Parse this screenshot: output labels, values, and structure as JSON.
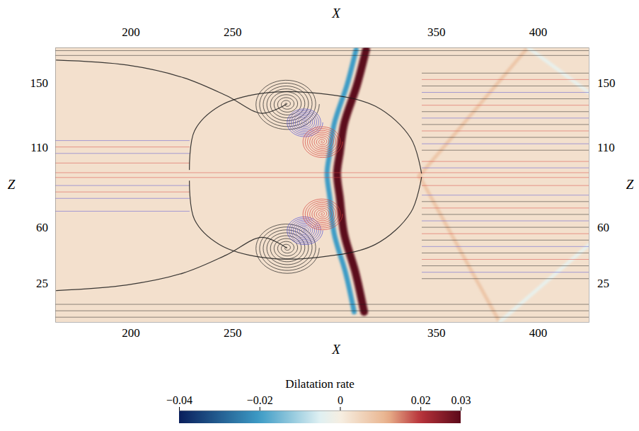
{
  "chart_data": {
    "type": "heatmap",
    "x_label": "X",
    "y_label": "Z",
    "xlim": [
      163,
      425
    ],
    "xticks": [
      200,
      250,
      350,
      400
    ],
    "ylim": [
      1,
      172
    ],
    "yticks": [
      25,
      60,
      110,
      150
    ],
    "colorbar": {
      "title": "Dilatation rate",
      "range": [
        -0.04,
        0.03
      ],
      "ticks": [
        {
          "value": -0.04,
          "label": "−0.04"
        },
        {
          "value": -0.02,
          "label": "−0.02"
        },
        0,
        0.02,
        0.03
      ]
    },
    "background": 0.003,
    "bands": [
      {
        "value": 0.03,
        "x": [
          315.7,
          311.2,
          304.9,
          302.8,
          301.4,
          302.8,
          304.9,
          310.5,
          314.7
        ],
        "z": [
          170.8,
          148.7,
          124.4,
          106.7,
          93.5,
          78.0,
          55.9,
          31.6,
          7.3
        ]
      },
      {
        "value": -0.02,
        "x": [
          310.8,
          306.3,
          300.0,
          297.9,
          296.5,
          297.9,
          300.0,
          305.6,
          309.8
        ],
        "z": [
          170.8,
          148.7,
          124.4,
          106.7,
          93.5,
          78.0,
          55.9,
          31.6,
          7.3
        ]
      },
      {
        "value": 0.008,
        "x": [
          341.8,
          395.1
        ],
        "z": [
          92,
          172
        ]
      },
      {
        "value": 0.008,
        "x": [
          341.8,
          381.2
        ],
        "z": [
          92,
          1
        ]
      },
      {
        "value": -0.003,
        "x": [
          395.1,
          425
        ],
        "z": [
          172,
          144
        ]
      },
      {
        "value": -0.003,
        "x": [
          381.2,
          425
        ],
        "z": [
          1,
          49
        ]
      }
    ],
    "streamlines": [
      {
        "color": "#1a1a1a",
        "x": [
          163,
          425
        ],
        "z": [
          167,
          170,
          4,
          8,
          12
        ]
      },
      {
        "color": "#4b4bd6",
        "x": [
          163,
          229
        ],
        "z": [
          70,
          78,
          86,
          106,
          114
        ]
      },
      {
        "color": "#d6403a",
        "x": [
          163,
          229
        ],
        "z": [
          82,
          100,
          110
        ]
      },
      {
        "color": "#d6403a",
        "x": [
          163,
          425
        ],
        "z": [
          91,
          94
        ]
      },
      {
        "color": "#1a1a1a",
        "x": [
          343,
          425
        ],
        "z": [
          28,
          36,
          44,
          52,
          60,
          68,
          76,
          108,
          116,
          124,
          132,
          140,
          148,
          156
        ]
      },
      {
        "color": "#4b4bd6",
        "x": [
          343,
          425
        ],
        "z": [
          32,
          48,
          64,
          80,
          97,
          112,
          128,
          144
        ]
      },
      {
        "color": "#d6403a",
        "x": [
          343,
          425
        ],
        "z": [
          40,
          56,
          72,
          86,
          101,
          120,
          136,
          152
        ]
      }
    ],
    "curves": [
      {
        "color": "#1a1a1a",
        "x": [
          228.9,
          231.4,
          243.6,
          264.5,
          292.3,
          320.2,
          337.6,
          342.9
        ],
        "z": [
          95.7,
          120.0,
          135.4,
          143.4,
          143.4,
          135.4,
          115.5,
          93.5
        ]
      },
      {
        "color": "#1a1a1a",
        "x": [
          228.9,
          231.4,
          243.6,
          264.5,
          292.3,
          320.2,
          337.6,
          342.9
        ],
        "z": [
          89.0,
          64.8,
          49.3,
          41.3,
          41.3,
          49.3,
          69.2,
          91.3
        ]
      },
      {
        "color": "#1a1a1a",
        "x": [
          163.4,
          198.3,
          226.1,
          247.0,
          264.5,
          276.7
        ],
        "z": [
          164.1,
          161.0,
          153.1,
          142.0,
          131.0,
          136.7
        ]
      },
      {
        "color": "#1a1a1a",
        "x": [
          163.4,
          198.3,
          226.1,
          247.0,
          264.5,
          276.7
        ],
        "z": [
          20.6,
          24.1,
          31.6,
          42.7,
          53.7,
          47.1
        ]
      }
    ],
    "vortices": [
      {
        "color": "#1a1a1a",
        "x": 276.7,
        "z": 136.7,
        "radius": 16
      },
      {
        "color": "#4b4bd6",
        "x": 285.4,
        "z": 125.3,
        "radius": 9
      },
      {
        "color": "#d6403a",
        "x": 294.1,
        "z": 113.3,
        "radius": 10
      },
      {
        "color": "#1a1a1a",
        "x": 276.7,
        "z": 47.1,
        "radius": 16
      },
      {
        "color": "#4b4bd6",
        "x": 285.4,
        "z": 58.1,
        "radius": 9
      },
      {
        "color": "#d6403a",
        "x": 294.1,
        "z": 68.3,
        "radius": 10
      }
    ]
  }
}
